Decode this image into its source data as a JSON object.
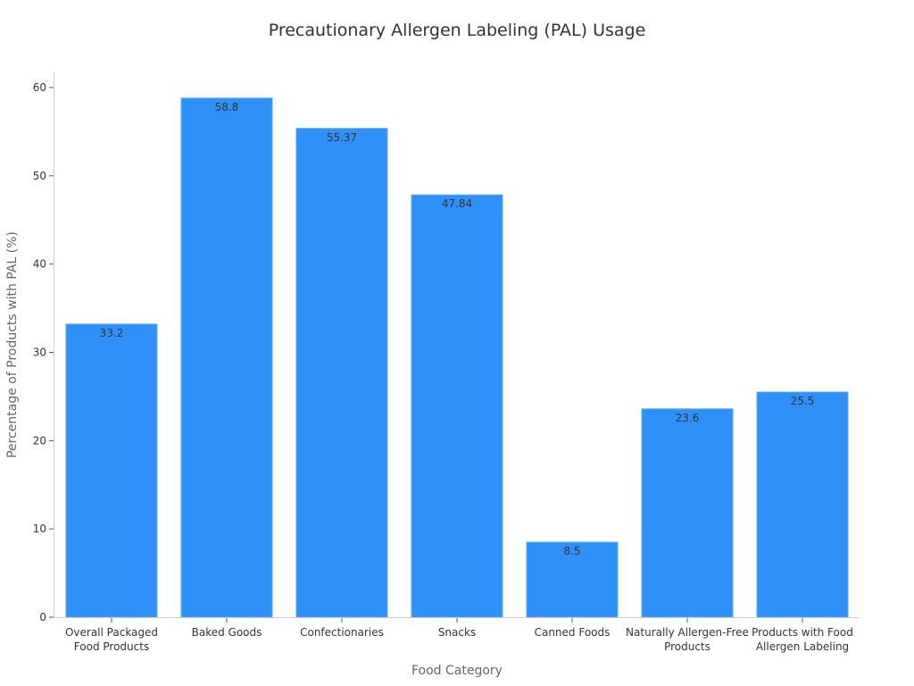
{
  "chart_data": {
    "type": "bar",
    "title": "Precautionary Allergen Labeling (PAL) Usage",
    "xlabel": "Food Category",
    "ylabel": "Percentage of Products with PAL (%)",
    "categories": [
      [
        "Overall Packaged",
        "Food Products"
      ],
      [
        "Baked Goods"
      ],
      [
        "Confectionaries"
      ],
      [
        "Snacks"
      ],
      [
        "Canned Foods"
      ],
      [
        "Naturally Allergen-Free",
        "Products"
      ],
      [
        "Products with Food",
        "Allergen Labeling"
      ]
    ],
    "values": [
      33.2,
      58.8,
      55.37,
      47.84,
      8.5,
      23.6,
      25.5
    ],
    "value_labels": [
      "33.2",
      "58.8",
      "55.37",
      "47.84",
      "8.5",
      "23.6",
      "25.5"
    ],
    "yticks": [
      0,
      10,
      20,
      30,
      40,
      50,
      60
    ],
    "ylim": [
      0,
      61.9
    ],
    "grid": false,
    "bar_color": "#2f91f7"
  }
}
